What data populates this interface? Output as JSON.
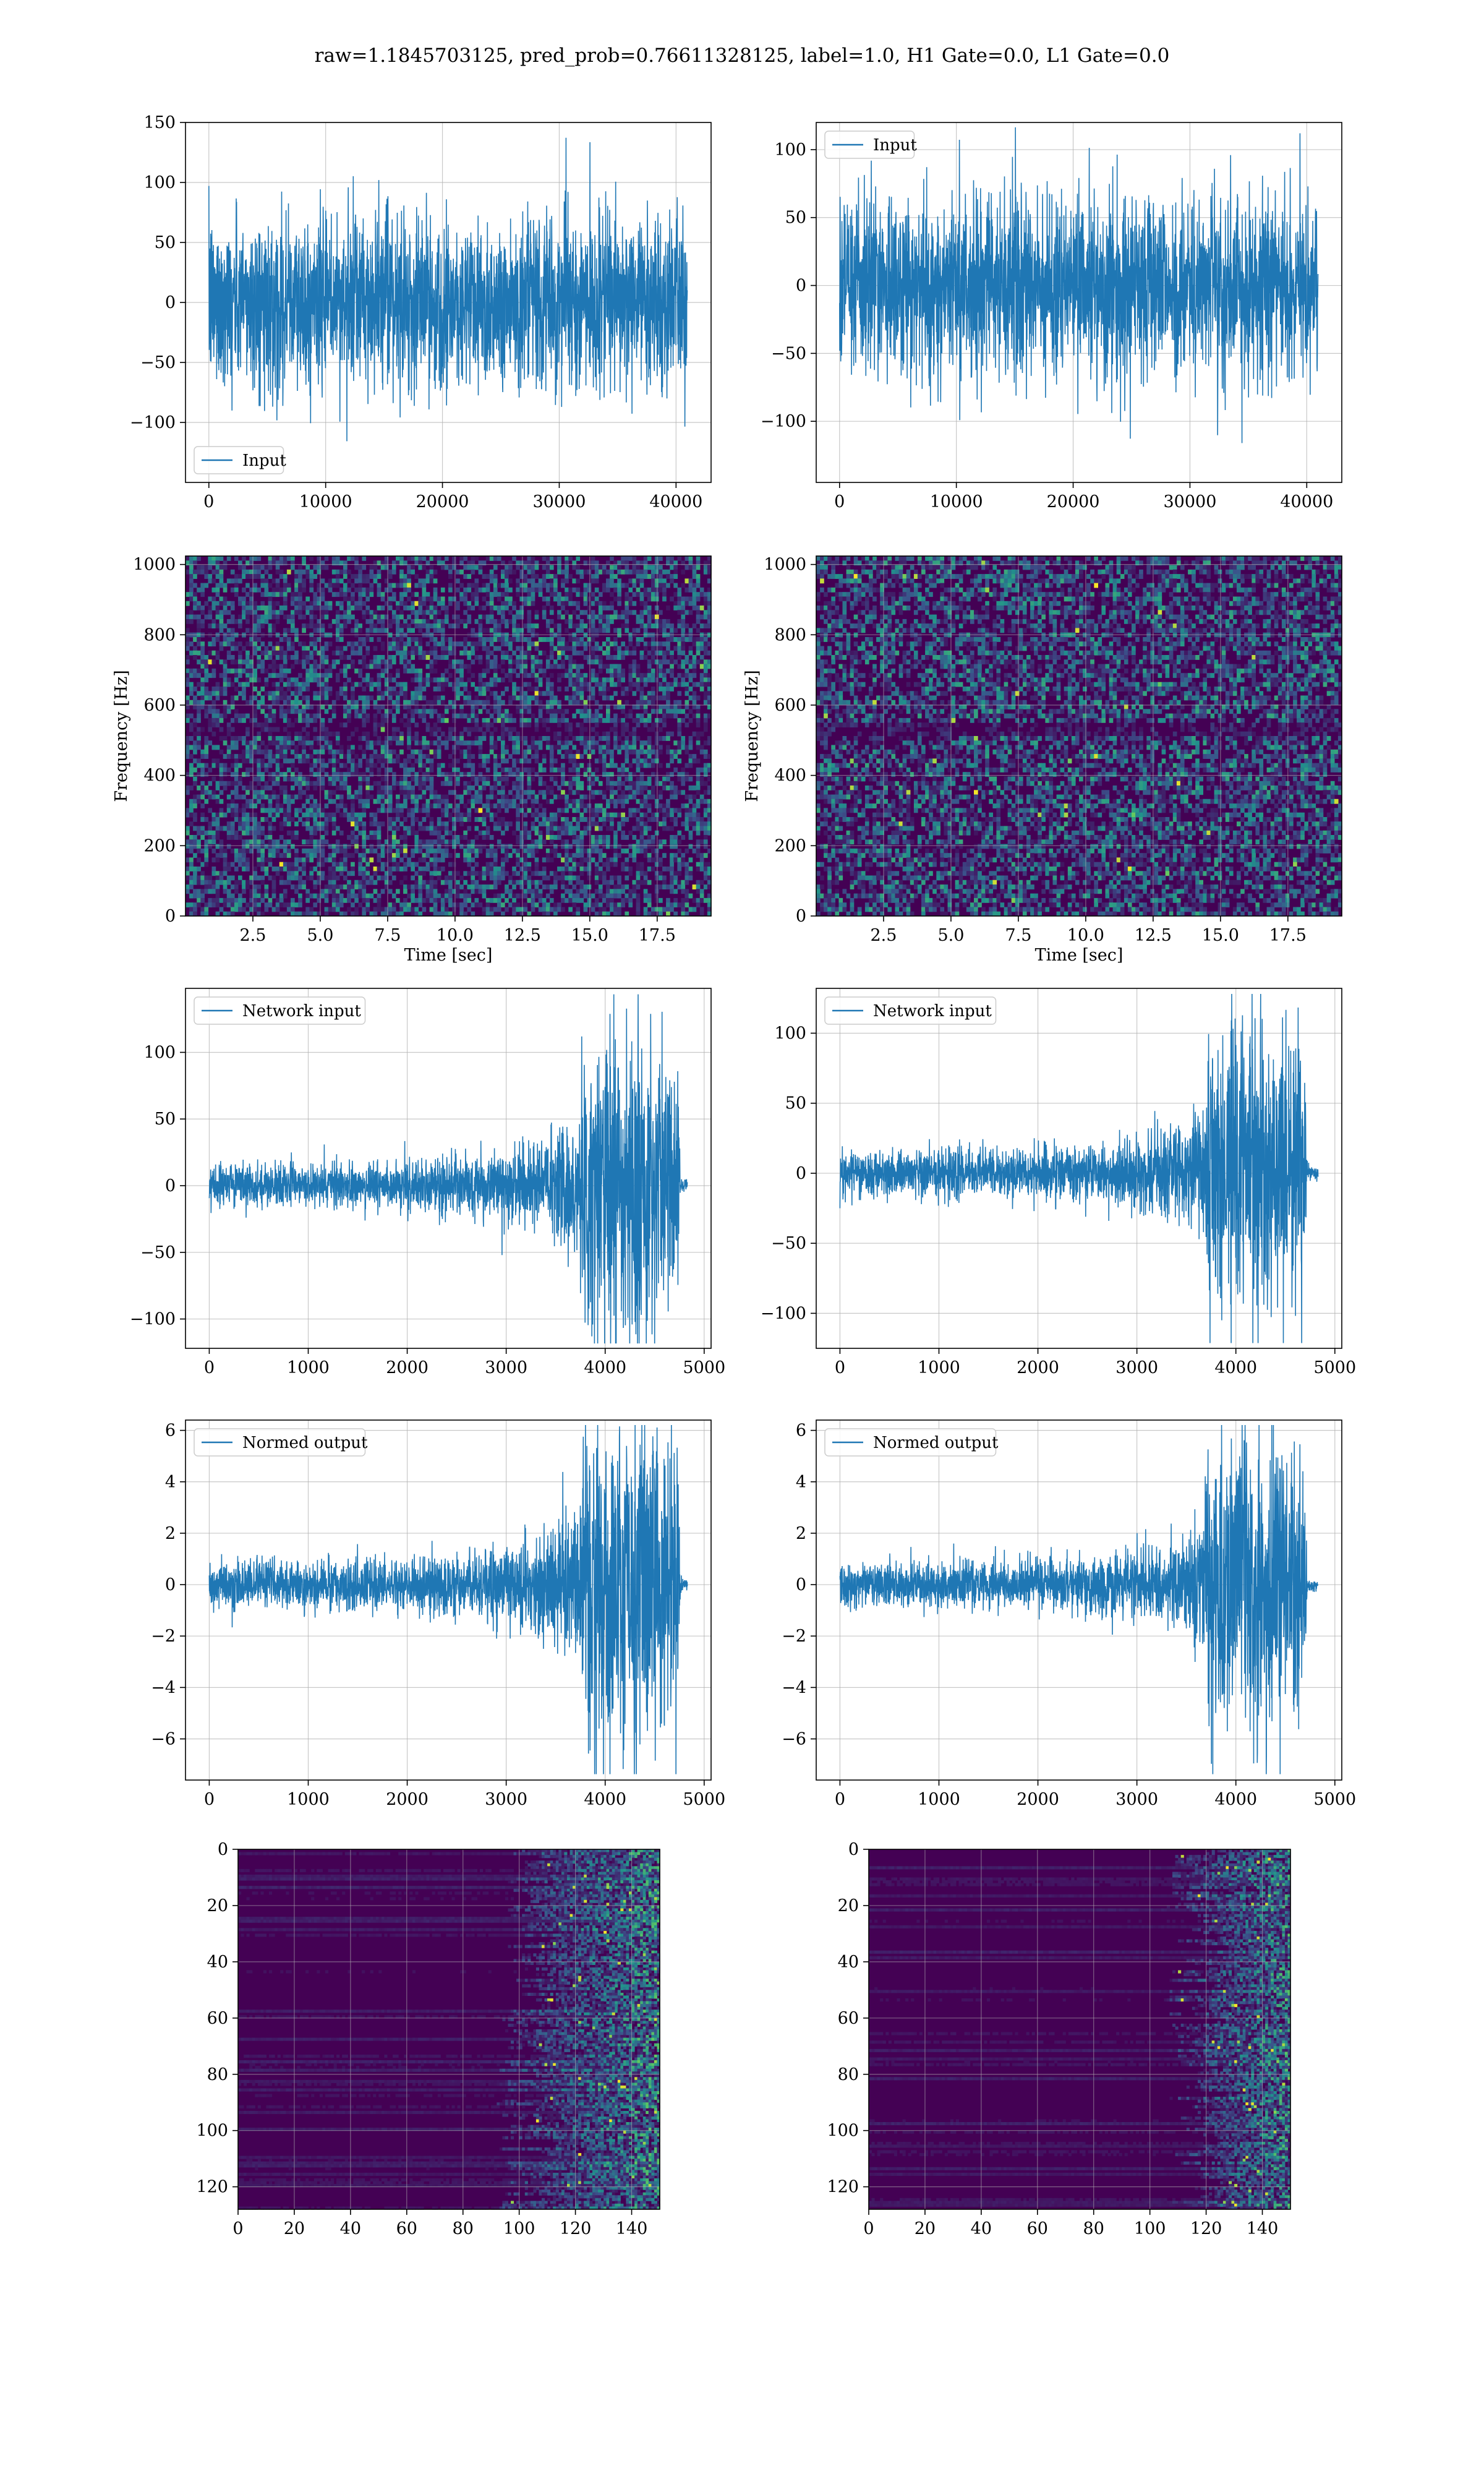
{
  "suptitle": "raw=1.1845703125, pred_prob=0.76611328125, label=1.0, H1 Gate=0.0, L1 Gate=0.0",
  "colors": {
    "line": "#1f77b4",
    "viridis_low": "#440154",
    "viridis_mid": "#21918c",
    "viridis_high": "#fde725",
    "grid": "#b0b0b0"
  },
  "chart_data": [
    {
      "id": "input-h1",
      "type": "line",
      "style": "noise",
      "legend": [
        "Input"
      ],
      "legend_loc": "lower left",
      "xlim": [
        -2000,
        43000
      ],
      "ylim": [
        -150,
        150
      ],
      "xticks": [
        0,
        10000,
        20000,
        30000,
        40000
      ],
      "xticklabels": [
        "0",
        "10000",
        "20000",
        "30000",
        "40000"
      ],
      "yticks": [
        -100,
        -50,
        0,
        50,
        100,
        150
      ],
      "yticklabels": [
        "−100",
        "−50",
        "0",
        "50",
        "100",
        "150"
      ],
      "x_range": [
        0,
        40960
      ],
      "amplitude": 35,
      "envelope": [
        [
          0,
          1
        ],
        [
          1,
          1
        ]
      ],
      "grid": true,
      "xlabel": "",
      "ylabel": ""
    },
    {
      "id": "input-l1",
      "type": "line",
      "style": "noise",
      "legend": [
        "Input"
      ],
      "legend_loc": "upper left",
      "xlim": [
        -2000,
        43000
      ],
      "ylim": [
        -145,
        120
      ],
      "xticks": [
        0,
        10000,
        20000,
        30000,
        40000
      ],
      "xticklabels": [
        "0",
        "10000",
        "20000",
        "30000",
        "40000"
      ],
      "yticks": [
        -100,
        -50,
        0,
        50,
        100
      ],
      "yticklabels": [
        "−100",
        "−50",
        "0",
        "50",
        "100"
      ],
      "x_range": [
        0,
        40960
      ],
      "amplitude": 33,
      "envelope": [
        [
          0,
          1
        ],
        [
          1,
          1
        ]
      ],
      "grid": true,
      "xlabel": "",
      "ylabel": ""
    },
    {
      "id": "spec-h1",
      "type": "heatmap",
      "style": "spectrogram",
      "xlim": [
        0,
        19.5
      ],
      "ylim": [
        0,
        1024
      ],
      "xticks": [
        2.5,
        5.0,
        7.5,
        10.0,
        12.5,
        15.0,
        17.5
      ],
      "xticklabels": [
        "2.5",
        "5.0",
        "7.5",
        "10.0",
        "12.5",
        "15.0",
        "17.5"
      ],
      "yticks": [
        0,
        200,
        400,
        600,
        800,
        1000
      ],
      "yticklabels": [
        "0",
        "200",
        "400",
        "600",
        "800",
        "1000"
      ],
      "xlabel": "Time [sec]",
      "ylabel": "Frequency [Hz]",
      "grid": true
    },
    {
      "id": "spec-l1",
      "type": "heatmap",
      "style": "spectrogram",
      "xlim": [
        0,
        19.5
      ],
      "ylim": [
        0,
        1024
      ],
      "xticks": [
        2.5,
        5.0,
        7.5,
        10.0,
        12.5,
        15.0,
        17.5
      ],
      "xticklabels": [
        "2.5",
        "5.0",
        "7.5",
        "10.0",
        "12.5",
        "15.0",
        "17.5"
      ],
      "yticks": [
        0,
        200,
        400,
        600,
        800,
        1000
      ],
      "yticklabels": [
        "0",
        "200",
        "400",
        "600",
        "800",
        "1000"
      ],
      "xlabel": "Time [sec]",
      "ylabel": "Frequency [Hz]",
      "grid": true
    },
    {
      "id": "network-input-h1",
      "type": "line",
      "style": "chirp",
      "legend": [
        "Network input"
      ],
      "legend_loc": "upper left",
      "xlim": [
        -240,
        5070
      ],
      "ylim": [
        -122,
        148
      ],
      "xticks": [
        0,
        1000,
        2000,
        3000,
        4000,
        5000
      ],
      "xticklabels": [
        "0",
        "1000",
        "2000",
        "3000",
        "4000",
        "5000"
      ],
      "yticks": [
        -100,
        -50,
        0,
        50,
        100
      ],
      "yticklabels": [
        "−100",
        "−50",
        "0",
        "50",
        "100"
      ],
      "x_range": [
        0,
        4830
      ],
      "amplitude": 8,
      "envelope": [
        [
          0,
          1
        ],
        [
          2000,
          1.1
        ],
        [
          3000,
          1.6
        ],
        [
          3500,
          2.4
        ],
        [
          3740,
          3.2
        ],
        [
          3760,
          6.5
        ],
        [
          4100,
          7.5
        ],
        [
          4500,
          6.8
        ],
        [
          4740,
          5.5
        ],
        [
          4760,
          0.3
        ],
        [
          4830,
          0.3
        ]
      ],
      "grid": true,
      "xlabel": "",
      "ylabel": ""
    },
    {
      "id": "network-input-l1",
      "type": "line",
      "style": "chirp",
      "legend": [
        "Network input"
      ],
      "legend_loc": "upper left",
      "xlim": [
        -240,
        5070
      ],
      "ylim": [
        -125,
        132
      ],
      "xticks": [
        0,
        1000,
        2000,
        3000,
        4000,
        5000
      ],
      "xticklabels": [
        "0",
        "1000",
        "2000",
        "3000",
        "4000",
        "5000"
      ],
      "yticks": [
        -100,
        -50,
        0,
        50,
        100
      ],
      "yticklabels": [
        "−100",
        "−50",
        "0",
        "50",
        "100"
      ],
      "x_range": [
        0,
        4830
      ],
      "amplitude": 8,
      "envelope": [
        [
          0,
          1
        ],
        [
          2000,
          1.1
        ],
        [
          3000,
          1.5
        ],
        [
          3500,
          2.2
        ],
        [
          3700,
          3.0
        ],
        [
          3720,
          6.2
        ],
        [
          4100,
          7.2
        ],
        [
          4500,
          6.5
        ],
        [
          4700,
          5.2
        ],
        [
          4720,
          0.3
        ],
        [
          4830,
          0.3
        ]
      ],
      "grid": true,
      "xlabel": "",
      "ylabel": ""
    },
    {
      "id": "normed-output-h1",
      "type": "line",
      "style": "chirp",
      "legend": [
        "Normed output"
      ],
      "legend_loc": "upper left",
      "xlim": [
        -240,
        5070
      ],
      "ylim": [
        -7.6,
        6.4
      ],
      "xticks": [
        0,
        1000,
        2000,
        3000,
        4000,
        5000
      ],
      "xticklabels": [
        "0",
        "1000",
        "2000",
        "3000",
        "4000",
        "5000"
      ],
      "yticks": [
        -6,
        -4,
        -2,
        0,
        2,
        4,
        6
      ],
      "yticklabels": [
        "−6",
        "−4",
        "−2",
        "0",
        "2",
        "4",
        "6"
      ],
      "x_range": [
        0,
        4830
      ],
      "amplitude": 0.45,
      "envelope": [
        [
          0,
          1
        ],
        [
          2000,
          1.1
        ],
        [
          3000,
          1.6
        ],
        [
          3500,
          2.4
        ],
        [
          3740,
          3.2
        ],
        [
          3760,
          6.5
        ],
        [
          4100,
          7.5
        ],
        [
          4500,
          6.8
        ],
        [
          4740,
          5.5
        ],
        [
          4760,
          0.3
        ],
        [
          4830,
          0.3
        ]
      ],
      "grid": true,
      "xlabel": "",
      "ylabel": ""
    },
    {
      "id": "normed-output-l1",
      "type": "line",
      "style": "chirp",
      "legend": [
        "Normed output"
      ],
      "legend_loc": "upper left",
      "xlim": [
        -240,
        5070
      ],
      "ylim": [
        -7.6,
        6.4
      ],
      "xticks": [
        0,
        1000,
        2000,
        3000,
        4000,
        5000
      ],
      "xticklabels": [
        "0",
        "1000",
        "2000",
        "3000",
        "4000",
        "5000"
      ],
      "yticks": [
        -6,
        -4,
        -2,
        0,
        2,
        4,
        6
      ],
      "yticklabels": [
        "−6",
        "−4",
        "−2",
        "0",
        "2",
        "4",
        "6"
      ],
      "x_range": [
        0,
        4830
      ],
      "amplitude": 0.42,
      "envelope": [
        [
          0,
          1
        ],
        [
          2000,
          1.1
        ],
        [
          3000,
          1.5
        ],
        [
          3500,
          2.2
        ],
        [
          3700,
          3.0
        ],
        [
          3720,
          6.2
        ],
        [
          4100,
          7.2
        ],
        [
          4500,
          6.5
        ],
        [
          4700,
          5.2
        ],
        [
          4720,
          0.3
        ],
        [
          4830,
          0.3
        ]
      ],
      "grid": true,
      "xlabel": "",
      "ylabel": ""
    },
    {
      "id": "feature-map-h1",
      "type": "heatmap",
      "style": "featuremap",
      "xlim": [
        0,
        150
      ],
      "ylim": [
        128,
        0
      ],
      "xticks": [
        0,
        20,
        40,
        60,
        80,
        100,
        120,
        140
      ],
      "xticklabels": [
        "0",
        "20",
        "40",
        "60",
        "80",
        "100",
        "120",
        "140"
      ],
      "yticks": [
        0,
        20,
        40,
        60,
        80,
        100,
        120
      ],
      "yticklabels": [
        "0",
        "20",
        "40",
        "60",
        "80",
        "100",
        "120"
      ],
      "activity_onset": 98,
      "xlabel": "",
      "ylabel": "",
      "grid": true
    },
    {
      "id": "feature-map-l1",
      "type": "heatmap",
      "style": "featuremap",
      "xlim": [
        0,
        150
      ],
      "ylim": [
        128,
        0
      ],
      "xticks": [
        0,
        20,
        40,
        60,
        80,
        100,
        120,
        140
      ],
      "xticklabels": [
        "0",
        "20",
        "40",
        "60",
        "80",
        "100",
        "120",
        "140"
      ],
      "yticks": [
        0,
        20,
        40,
        60,
        80,
        100,
        120
      ],
      "yticklabels": [
        "0",
        "20",
        "40",
        "60",
        "80",
        "100",
        "120"
      ],
      "activity_onset": 112,
      "xlabel": "",
      "ylabel": "",
      "grid": true
    }
  ]
}
